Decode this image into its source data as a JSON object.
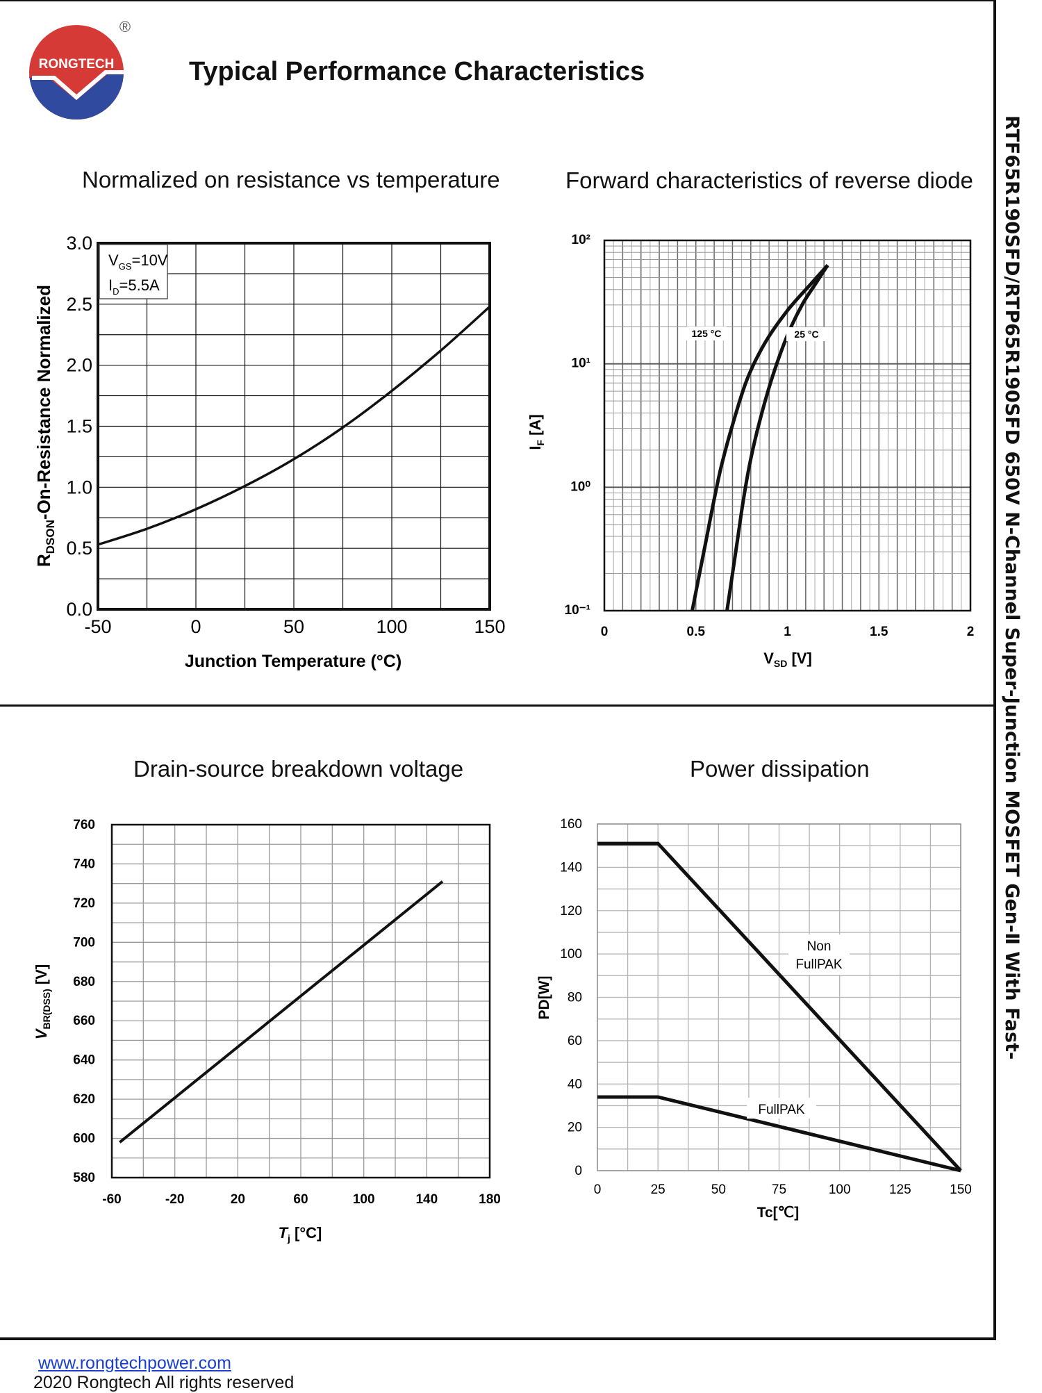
{
  "header": {
    "brand": "RONGTECH",
    "registered_mark": "®",
    "page_title": "Typical Performance Characteristics"
  },
  "side_title": "RTF65R190SFD/RTP65R190SFD 650V N-Channel Super-Junction MOSFET Gen-Ⅱ With Fast-",
  "footer": {
    "link": "www.rongtechpower.com",
    "copyright": "2020 Rongtech All rights reserved"
  },
  "colors": {
    "brand_red": "#d63a37",
    "brand_blue": "#2f4a9e",
    "line": "#111111",
    "grid": "#777777"
  },
  "chart_data": [
    {
      "type": "line",
      "title": "Normalized on resistance vs temperature",
      "xlabel": "Junction Temperature (°C)",
      "ylabel": "RDSON-On-Resistance Normalized",
      "ylabel_main": "R",
      "ylabel_sub": "DSON",
      "ylabel_rest": "-On-Resistance Normalized",
      "xlim": [
        -50,
        150
      ],
      "ylim": [
        0,
        3
      ],
      "xticks": [
        "-50",
        "0",
        "50",
        "100",
        "150"
      ],
      "yticks": [
        "0.0",
        "0.5",
        "1.0",
        "1.5",
        "2.0",
        "2.5",
        "3.0"
      ],
      "legend": [
        "VGS=10V",
        "ID=5.5A"
      ],
      "legend_vgs_main": "V",
      "legend_vgs_sub": "GS",
      "legend_vgs_rest": "=10V",
      "legend_id_main": "I",
      "legend_id_sub": "D",
      "legend_id_rest": "=5.5A",
      "series": [
        {
          "name": "RDSON",
          "x": [
            -50,
            -25,
            0,
            25,
            50,
            75,
            100,
            125,
            150
          ],
          "y": [
            0.53,
            0.66,
            0.82,
            1.01,
            1.23,
            1.49,
            1.79,
            2.12,
            2.48
          ]
        }
      ]
    },
    {
      "type": "line",
      "title": "Forward characteristics of reverse diode",
      "xlabel": "VSD [V]",
      "xlabel_main": "V",
      "xlabel_sub": "SD",
      "xlabel_rest": " [V]",
      "ylabel": "IF [A]",
      "ylabel_main": "I",
      "ylabel_sub": "F",
      "ylabel_rest": " [A]",
      "xlim": [
        0,
        2
      ],
      "ylim_log10": [
        -1,
        2
      ],
      "xticks": [
        "0",
        "0.5",
        "1",
        "1.5",
        "2"
      ],
      "yticks": [
        "10⁻¹",
        "10⁰",
        "10¹",
        "10²"
      ],
      "series": [
        {
          "name": "125 °C",
          "x": [
            0.48,
            0.52,
            0.56,
            0.6,
            0.64,
            0.7,
            0.78,
            0.88,
            1.0,
            1.12,
            1.22
          ],
          "y": [
            0.1,
            0.2,
            0.4,
            0.8,
            1.5,
            3.2,
            7.5,
            15,
            27,
            43,
            63
          ]
        },
        {
          "name": "25 °C",
          "x": [
            0.67,
            0.7,
            0.73,
            0.76,
            0.8,
            0.85,
            0.92,
            1.0,
            1.08,
            1.16,
            1.22
          ],
          "y": [
            0.1,
            0.2,
            0.4,
            0.8,
            1.7,
            3.5,
            8,
            17,
            30,
            46,
            63
          ]
        }
      ]
    },
    {
      "type": "line",
      "title": "Drain-source breakdown voltage",
      "xlabel": "Tj [°C]",
      "xlabel_main": "T",
      "xlabel_sub": "j",
      "xlabel_rest": " [°C]",
      "ylabel": "VBR(DSS) [V]",
      "ylabel_main": "V",
      "ylabel_sub": "BR(DSS)",
      "ylabel_rest": " [V]",
      "xlim": [
        -60,
        180
      ],
      "ylim": [
        580,
        760
      ],
      "xticks": [
        "-60",
        "-20",
        "20",
        "60",
        "100",
        "140",
        "180"
      ],
      "yticks": [
        "580",
        "600",
        "620",
        "640",
        "660",
        "680",
        "700",
        "720",
        "740",
        "760"
      ],
      "series": [
        {
          "name": "VBR(DSS)",
          "x": [
            -55,
            150
          ],
          "y": [
            598,
            731
          ]
        }
      ]
    },
    {
      "type": "line",
      "title": "Power dissipation",
      "xlabel": "Tc[℃]",
      "ylabel": "PD[W]",
      "xlim": [
        0,
        150
      ],
      "ylim": [
        0,
        160
      ],
      "xticks": [
        "0",
        "25",
        "50",
        "75",
        "100",
        "125",
        "150"
      ],
      "yticks": [
        "0",
        "20",
        "40",
        "60",
        "80",
        "100",
        "120",
        "140",
        "160"
      ],
      "series": [
        {
          "name": "Non FullPAK",
          "label_lines": [
            "Non",
            "FullPAK"
          ],
          "x": [
            0,
            25,
            150
          ],
          "y": [
            151,
            151,
            0
          ]
        },
        {
          "name": "FullPAK",
          "label_lines": [
            "FullPAK"
          ],
          "x": [
            0,
            25,
            150
          ],
          "y": [
            34,
            34,
            0
          ]
        }
      ]
    }
  ]
}
